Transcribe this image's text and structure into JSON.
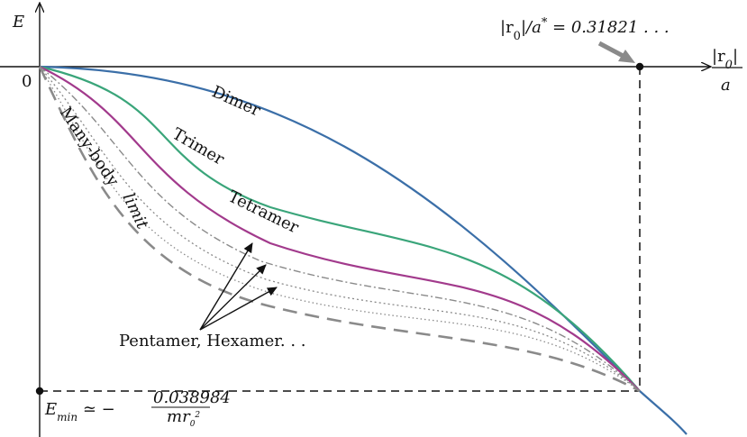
{
  "axes": {
    "y_label": "E",
    "origin_label": "0",
    "x_label_numerator": "|r",
    "x_label_numerator_sub": "0",
    "x_label_numerator_end": "|",
    "x_label_denominator": "a"
  },
  "annotations": {
    "critical_ratio_prefix": "|r",
    "critical_ratio_sub": "0",
    "critical_ratio_mid": "|/a",
    "critical_ratio_sup": "*",
    "critical_ratio_value": " = 0.31821 . . .",
    "emin_prefix": "E",
    "emin_sub": "min",
    "emin_relation": " ≃ −",
    "emin_numerator": "0.038984",
    "emin_denominator_m": "mr",
    "emin_denominator_sub": "0",
    "emin_denominator_sup": "2",
    "higher_clusters": "Pentamer, Hexamer. . ."
  },
  "curve_labels": {
    "dimer": "Dimer",
    "trimer": "Trimer",
    "tetramer": "Tetramer",
    "many_body_1": "Many-body",
    "many_body_2": "limit"
  },
  "colors": {
    "dimer": "#3b6fa8",
    "trimer": "#3aa57a",
    "tetramer": "#a23a8c",
    "higher": "#8a8a8a",
    "many_body": "#8a8a8a",
    "arrow_gray": "#8a8a8a",
    "axis": "#111111"
  }
}
